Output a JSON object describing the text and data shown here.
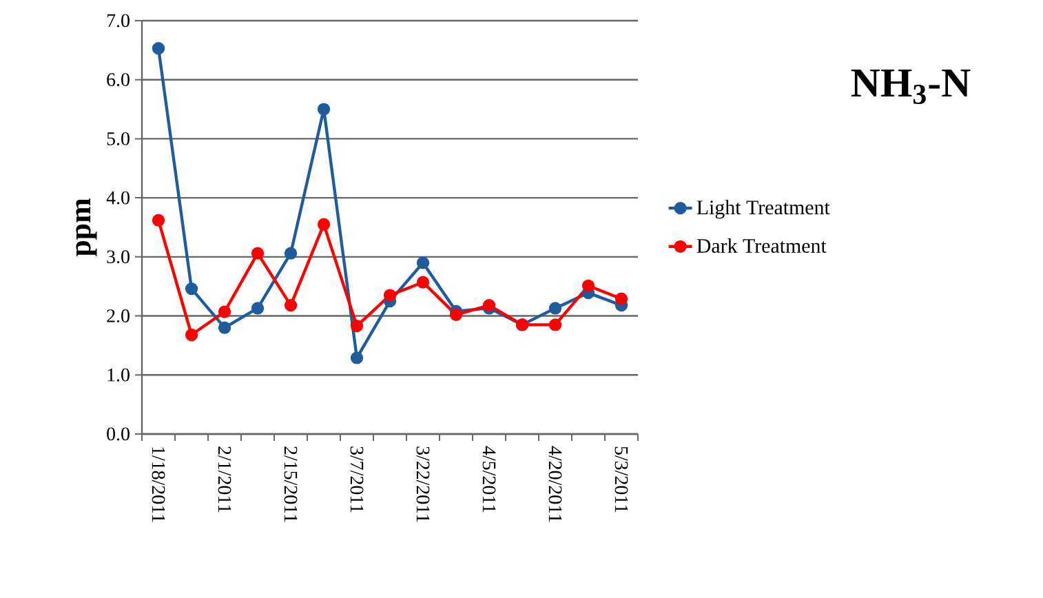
{
  "chart_data": {
    "type": "line",
    "title": "NH$_{3}$-N",
    "ylabel": "ppm",
    "categories": [
      "1/18/2011",
      null,
      "2/1/2011",
      null,
      "2/15/2011",
      null,
      "3/7/2011",
      null,
      "3/22/2011",
      null,
      "4/5/2011",
      null,
      "4/20/2011",
      null,
      "5/3/2011"
    ],
    "series": [
      {
        "name": "Light Treatment",
        "color": "#1f5c9e",
        "values": [
          6.53,
          2.46,
          1.8,
          2.13,
          3.06,
          5.5,
          1.29,
          2.25,
          2.9,
          2.08,
          2.13,
          1.85,
          2.13,
          2.39,
          2.18
        ]
      },
      {
        "name": "Dark Treatment",
        "color": "#ff0000",
        "values": [
          3.62,
          1.68,
          2.07,
          3.06,
          2.18,
          3.55,
          1.83,
          2.35,
          2.57,
          2.02,
          2.18,
          1.85,
          1.85,
          2.51,
          2.29
        ]
      }
    ],
    "ylim": [
      0,
      7
    ],
    "yticks": [
      {
        "value": 0,
        "label": "0.0"
      },
      {
        "value": 1,
        "label": "1.0"
      },
      {
        "value": 2,
        "label": "2.0"
      },
      {
        "value": 3,
        "label": "3.0"
      },
      {
        "value": 4,
        "label": "4.0"
      },
      {
        "value": 5,
        "label": "5.0"
      },
      {
        "value": 6,
        "label": "6.0"
      },
      {
        "value": 7,
        "label": "7.0"
      }
    ],
    "grid": "y",
    "legend": "right",
    "marker": "circle",
    "line_style": "solid"
  }
}
